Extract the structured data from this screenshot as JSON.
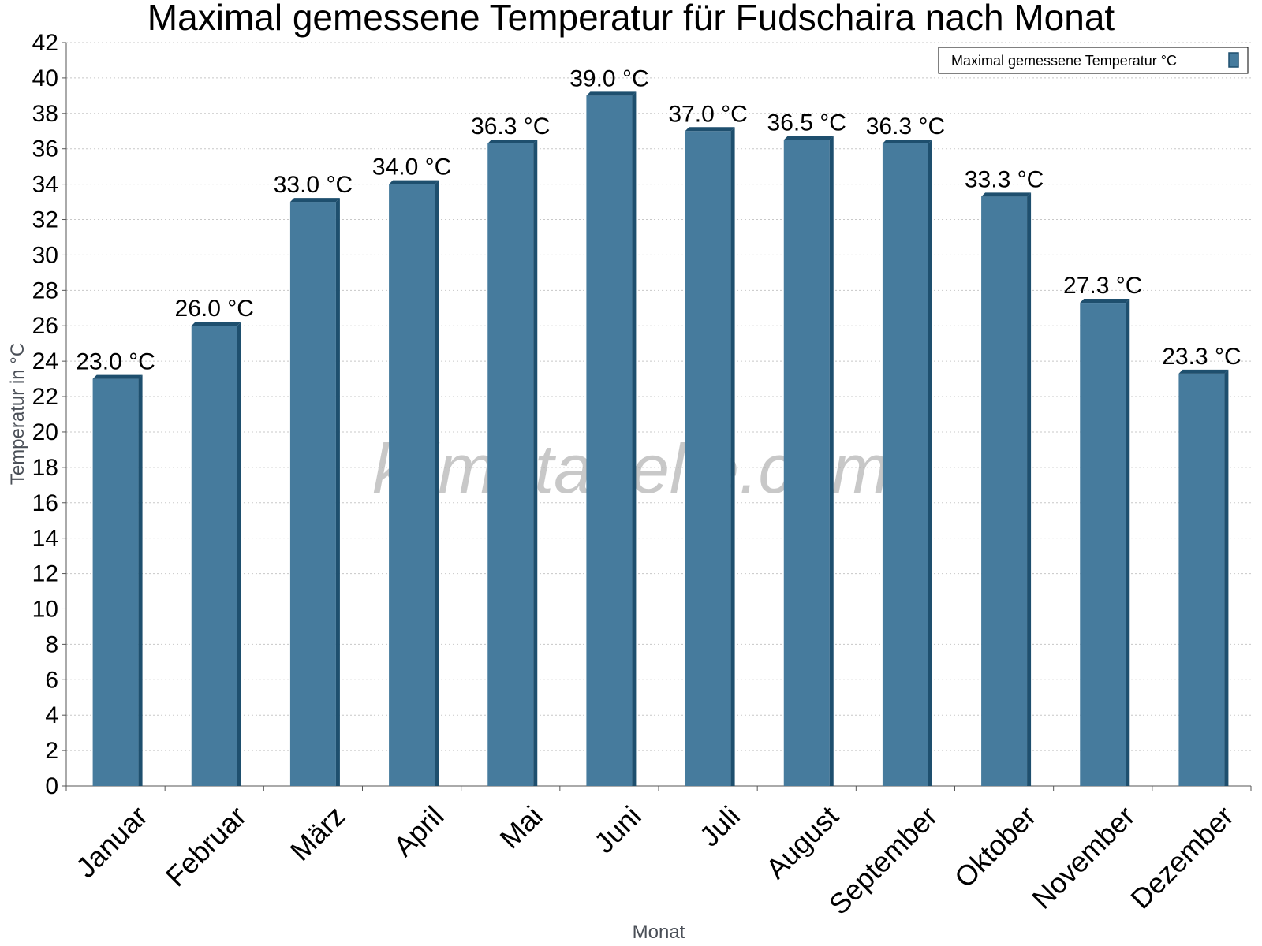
{
  "chart_data": {
    "type": "bar",
    "title": "Maximal gemessene Temperatur für Fudschaira nach Monat",
    "xlabel": "Monat",
    "ylabel": "Temperatur in °C",
    "categories": [
      "Januar",
      "Februar",
      "März",
      "April",
      "Mai",
      "Juni",
      "Juli",
      "August",
      "September",
      "Oktober",
      "November",
      "Dezember"
    ],
    "series": [
      {
        "name": "Maximal gemessene Temperatur °C",
        "values": [
          23.0,
          26.0,
          33.0,
          34.0,
          36.3,
          39.0,
          37.0,
          36.5,
          36.3,
          33.3,
          27.3,
          23.3
        ],
        "labels": [
          "23.0 °C",
          "26.0 °C",
          "33.0 °C",
          "34.0 °C",
          "36.3 °C",
          "39.0 °C",
          "37.0 °C",
          "36.5 °C",
          "36.3 °C",
          "33.3 °C",
          "27.3 °C",
          "23.3 °C"
        ]
      }
    ],
    "ylim": [
      0,
      42
    ],
    "yticks": [
      "0",
      "2",
      "4",
      "6",
      "8",
      "10",
      "12",
      "14",
      "16",
      "18",
      "20",
      "22",
      "24",
      "26",
      "28",
      "30",
      "32",
      "34",
      "36",
      "38",
      "40",
      "42"
    ],
    "grid": true,
    "legend_position": "top-right",
    "watermark": "klimatabelle.com",
    "colors": {
      "bar": "#467b9d",
      "bar_dark": "#1e4f6e",
      "grid": "#c8c8c8",
      "axis": "#555555"
    }
  }
}
